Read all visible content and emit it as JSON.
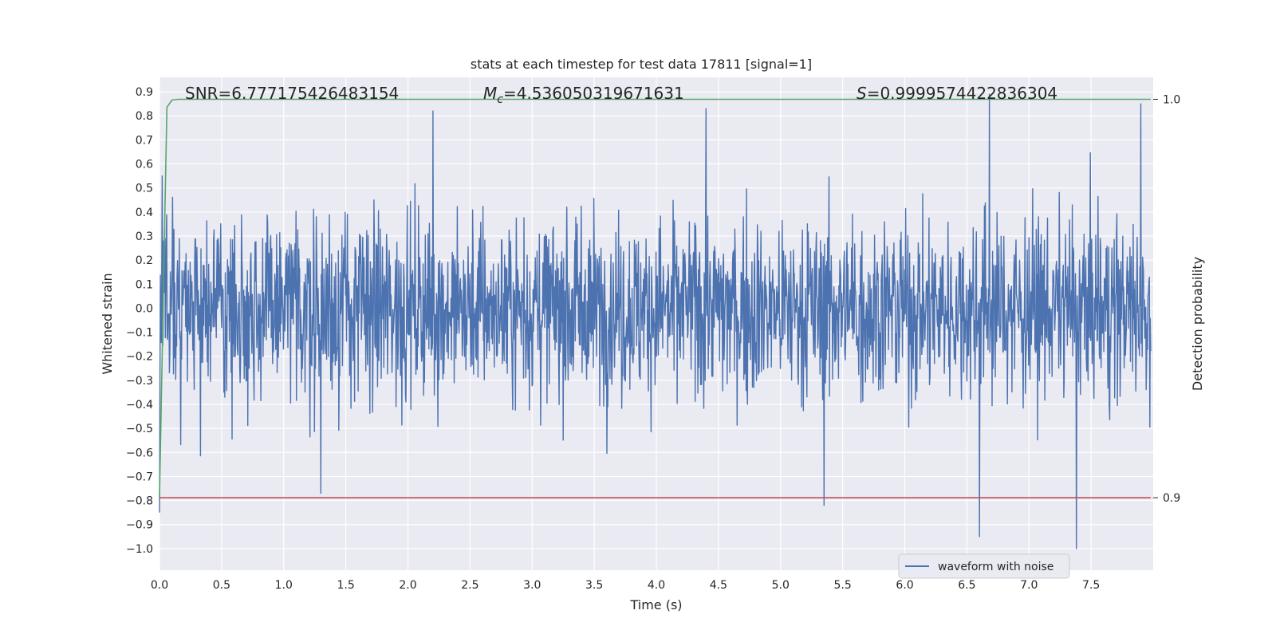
{
  "chart_data": {
    "type": "line",
    "title": "stats at each timestep for test data 17811 [signal=1]",
    "xlabel": "Time (s)",
    "ylabel": "Whitened strain",
    "ylabel_right": "Detection probability",
    "xlim": [
      0.0,
      8.0
    ],
    "ylim": [
      -1.09,
      0.96
    ],
    "ylim_right": [
      0.8818,
      1.0055
    ],
    "x_ticks": [
      "0.0",
      "0.5",
      "1.0",
      "1.5",
      "2.0",
      "2.5",
      "3.0",
      "3.5",
      "4.0",
      "4.5",
      "5.0",
      "5.5",
      "6.0",
      "6.5",
      "7.0",
      "7.5"
    ],
    "y_ticks": [
      "0.9",
      "0.8",
      "0.7",
      "0.6",
      "0.5",
      "0.4",
      "0.3",
      "0.2",
      "0.1",
      "0.0",
      "-0.1",
      "-0.2",
      "-0.3",
      "-0.4",
      "-0.5",
      "-0.6",
      "-0.7",
      "-0.8",
      "-0.9",
      "-1.0"
    ],
    "y_ticks_right": [
      "1.0",
      "0.9"
    ],
    "grid": true,
    "legend_placement": "lower-right",
    "annotations": {
      "snr": "SNR=6.777175426483154",
      "mc_symbol": "M",
      "mc_sub": "c",
      "mc_value": "=4.536050319671631",
      "s_symbol": "S",
      "s_value": "=0.9999574422836304"
    },
    "series": [
      {
        "name": "waveform with noise",
        "axis": "left",
        "color": "#4c72b0",
        "description_stats": {
          "t_start": 0.0,
          "t_end": 7.98,
          "typical_abs_max": 0.45,
          "min": -1.0,
          "max": 0.89
        },
        "notable_extremes": [
          [
            0.0,
            -0.85
          ],
          [
            0.02,
            0.55
          ],
          [
            2.2,
            0.82
          ],
          [
            4.4,
            0.83
          ],
          [
            6.68,
            0.89
          ],
          [
            7.38,
            -1.0
          ],
          [
            7.9,
            0.85
          ],
          [
            1.3,
            -0.77
          ],
          [
            6.6,
            -0.95
          ],
          [
            5.35,
            -0.82
          ]
        ]
      },
      {
        "name": "",
        "axis": "right",
        "color": "#55a868",
        "values_x": [
          0.0,
          0.03,
          0.06,
          0.1,
          0.15,
          7.98
        ],
        "values_y": [
          0.9,
          0.95,
          0.998,
          0.9998,
          1.0,
          1.0
        ]
      },
      {
        "name": "",
        "axis": "right",
        "color": "#c44e52",
        "values_x": [
          0.0,
          7.98
        ],
        "values_y": [
          0.9,
          0.9
        ]
      }
    ]
  }
}
